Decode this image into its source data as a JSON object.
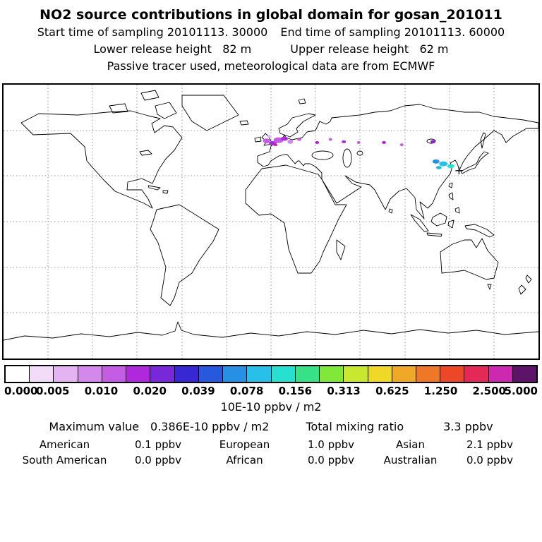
{
  "header": {
    "title": "NO2 source contributions in global domain for gosan_201011",
    "start_time": "Start time of sampling 20101113. 30000",
    "end_time": "End time of sampling 20101113. 60000",
    "lower_release": "Lower release height   82 m",
    "upper_release": "Upper release height   62 m",
    "tracer_info": "Passive tracer used, meteorological data are from ECMWF"
  },
  "colorbar": {
    "units_label": "10E-10 ppbv / m2",
    "tick_labels": [
      "0.000",
      "0.005",
      "0.010",
      "0.020",
      "0.039",
      "0.078",
      "0.156",
      "0.313",
      "0.625",
      "1.250",
      "2.500",
      "5.000"
    ],
    "segment_colors": [
      "#ffffff",
      "#f2dcf8",
      "#e4b4f2",
      "#d488ec",
      "#c45ce4",
      "#b028dc",
      "#7828d8",
      "#3828d4",
      "#2858dc",
      "#2890e4",
      "#28c0e8",
      "#28e0d0",
      "#38e088",
      "#80e838",
      "#c8e830",
      "#f0d828",
      "#f0a828",
      "#ee7828",
      "#ec4828",
      "#e42858",
      "#cc28b0",
      "#5c1468"
    ]
  },
  "stats": {
    "maximum_label": "Maximum value",
    "maximum_value": "0.386E-10 ppbv / m2",
    "total_label": "Total mixing ratio",
    "total_value": "3.3 ppbv",
    "regions": [
      {
        "label": "American",
        "value": "0.1 ppbv"
      },
      {
        "label": "European",
        "value": "1.0 ppbv"
      },
      {
        "label": "Asian",
        "value": "2.1 ppbv"
      },
      {
        "label": "South American",
        "value": "0.0 ppbv"
      },
      {
        "label": "African",
        "value": "0.0 ppbv"
      },
      {
        "label": "Australian",
        "value": "0.0 ppbv"
      }
    ]
  },
  "chart_data": {
    "type": "heatmap",
    "title": "NO2 source contributions in global domain for gosan_201011",
    "units": "10E-10 ppbv / m2",
    "projection": "equirectangular",
    "lon_range": [
      -180,
      180
    ],
    "lat_range": [
      -90,
      90
    ],
    "grid_spacing_deg": 30,
    "colorbar_levels": [
      0.0,
      0.005,
      0.01,
      0.02,
      0.039,
      0.078,
      0.156,
      0.313,
      0.625,
      1.25,
      2.5,
      5.0
    ],
    "maximum_value": "0.386E-10 ppbv / m2",
    "total_mixing_ratio_ppbv": 3.3,
    "source_contributions_ppbv": {
      "American": 0.1,
      "European": 1.0,
      "Asian": 2.1,
      "South American": 0.0,
      "African": 0.0,
      "Australian": 0.0
    },
    "receptor_marker": {
      "lon": 126.5,
      "lat": 33.5
    },
    "hotspots": [
      {
        "lon": -3,
        "lat": 53,
        "rx": 5,
        "ry": 3.5,
        "color": "#c45ce4"
      },
      {
        "lon": 1,
        "lat": 51.5,
        "rx": 5,
        "ry": 3,
        "color": "#9b30d8"
      },
      {
        "lon": 5,
        "lat": 53.5,
        "rx": 7,
        "ry": 4,
        "color": "#c45ce4"
      },
      {
        "lon": 9,
        "lat": 54.5,
        "rx": 5,
        "ry": 3,
        "color": "#b028dc"
      },
      {
        "lon": 13,
        "lat": 52.5,
        "rx": 4,
        "ry": 3,
        "color": "#d488ec"
      },
      {
        "lon": 3,
        "lat": 50.5,
        "rx": 3,
        "ry": 2,
        "color": "#cc28b0"
      },
      {
        "lon": -1,
        "lat": 56,
        "rx": 3,
        "ry": 2,
        "color": "#e4b4f2"
      },
      {
        "lon": 19,
        "lat": 54,
        "rx": 3,
        "ry": 2,
        "color": "#c45ce4"
      },
      {
        "lon": 31,
        "lat": 52,
        "rx": 3,
        "ry": 2,
        "color": "#b028dc"
      },
      {
        "lon": 40,
        "lat": 54,
        "rx": 2.5,
        "ry": 2,
        "color": "#c45ce4"
      },
      {
        "lon": 49,
        "lat": 52.5,
        "rx": 3,
        "ry": 2,
        "color": "#b028dc"
      },
      {
        "lon": 59,
        "lat": 52,
        "rx": 2.5,
        "ry": 2,
        "color": "#c45ce4"
      },
      {
        "lon": 76,
        "lat": 52,
        "rx": 3,
        "ry": 2,
        "color": "#b028dc"
      },
      {
        "lon": 88,
        "lat": 50.5,
        "rx": 2.5,
        "ry": 2,
        "color": "#c45ce4"
      },
      {
        "lon": 109,
        "lat": 52.5,
        "rx": 3.5,
        "ry": 2.5,
        "color": "#8a28d0"
      },
      {
        "lon": 111,
        "lat": 39.5,
        "rx": 5,
        "ry": 3,
        "color": "#2890e4"
      },
      {
        "lon": 116,
        "lat": 38,
        "rx": 6,
        "ry": 3.5,
        "color": "#28c0e8"
      },
      {
        "lon": 121,
        "lat": 36.5,
        "rx": 5,
        "ry": 3,
        "color": "#28e0d0"
      },
      {
        "lon": 113,
        "lat": 35.5,
        "rx": 4,
        "ry": 2.5,
        "color": "#28c0e8"
      }
    ]
  }
}
